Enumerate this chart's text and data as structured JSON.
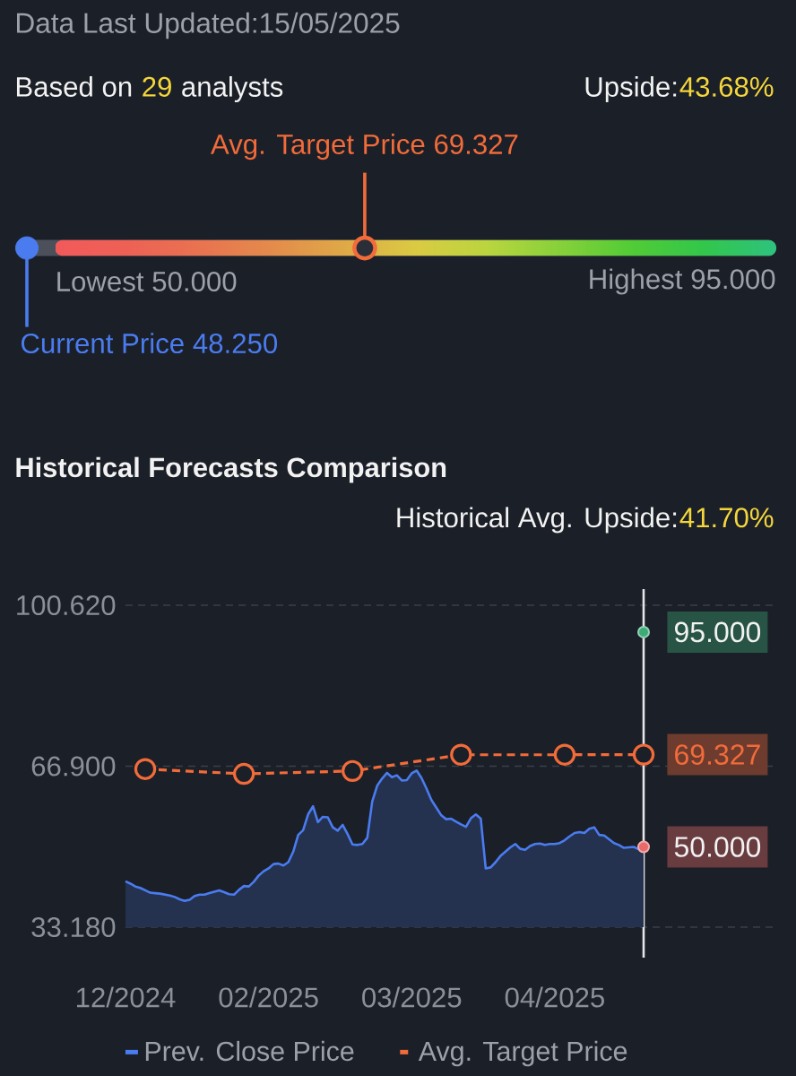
{
  "chart_data": [
    {
      "type": "other",
      "annotations": [
        "Data Last Updated:15/05/2025",
        "Based on",
        "29",
        "analysts",
        "Upside:",
        "43.68%"
      ],
      "categories": [
        "Lowest",
        "Highest",
        "Avg. Target Price",
        "Current Price"
      ],
      "values": [
        50,
        95,
        69.327,
        48.25
      ],
      "value_labels": [
        "50.000",
        "95.000",
        "69.327",
        "48.250"
      ],
      "colors": [
        "#f25a5a",
        "#2ec27e",
        "#f26b3a",
        "#4a7cf0"
      ]
    },
    {
      "type": "line",
      "title": "Historical Forecasts Comparison",
      "annotations": [
        "Historical Avg. Upside:",
        "41.70%"
      ],
      "categories": [
        "12/2024",
        null,
        null,
        null,
        null,
        null,
        null,
        null,
        null,
        null,
        null,
        null,
        null,
        null,
        null,
        null,
        null,
        null,
        null,
        null,
        null,
        null,
        null,
        null,
        null,
        null,
        null,
        null,
        null,
        "02/2025",
        null,
        null,
        null,
        null,
        null,
        null,
        null,
        null,
        null,
        null,
        null,
        null,
        null,
        null,
        null,
        null,
        null,
        null,
        null,
        null,
        null,
        null,
        null,
        null,
        null,
        null,
        null,
        null,
        "03/2025",
        null,
        null,
        null,
        null,
        null,
        null,
        null,
        null,
        null,
        null,
        null,
        null,
        null,
        null,
        null,
        null,
        null,
        null,
        null,
        null,
        null,
        null,
        null,
        null,
        null,
        null,
        null,
        null,
        "04/2025",
        null,
        null,
        null,
        null,
        null,
        null,
        null,
        null,
        null,
        null,
        null,
        null,
        null,
        null,
        null,
        null,
        null,
        null
      ],
      "ylim": [
        33.18,
        100.62
      ],
      "yticks": [
        {
          "value": 33.18,
          "label": "33.180"
        },
        {
          "value": 66.9,
          "label": "66.900"
        },
        {
          "value": 100.62,
          "label": "100.620"
        }
      ],
      "grid": "y",
      "legend": "bottom",
      "series": [
        {
          "name": "Prev. Close Price",
          "type": "area",
          "color": "#4a7cf0",
          "values": [
            42.8,
            42.3,
            41.7,
            41.4,
            40.9,
            40.4,
            40.3,
            40.2,
            40.0,
            39.8,
            39.5,
            39.0,
            38.7,
            38.9,
            39.7,
            40.0,
            40.0,
            40.3,
            40.6,
            40.9,
            40.5,
            40.1,
            40.0,
            41.0,
            41.8,
            41.7,
            42.7,
            44.0,
            44.9,
            45.5,
            46.4,
            46.5,
            46.1,
            46.8,
            49.0,
            52.5,
            53.5,
            56.8,
            58.5,
            55.2,
            56.3,
            56.2,
            54.1,
            53.4,
            54.6,
            52.7,
            50.5,
            50.4,
            50.6,
            51.9,
            59.5,
            62.8,
            64.3,
            65.5,
            64.6,
            65.0,
            63.9,
            64.0,
            65.4,
            66.0,
            64.4,
            62.2,
            59.8,
            58.2,
            56.6,
            55.8,
            55.9,
            55.3,
            54.7,
            54.2,
            56.0,
            56.8,
            55.9,
            45.5,
            45.7,
            46.8,
            48.1,
            49.0,
            49.9,
            50.6,
            49.6,
            49.4,
            50.2,
            50.6,
            50.7,
            50.4,
            50.6,
            50.6,
            50.8,
            51.4,
            52.2,
            52.9,
            53.1,
            52.9,
            53.8,
            54.1,
            52.5,
            52.4,
            51.6,
            50.8,
            50.4,
            49.8,
            49.9,
            50.0,
            49.5,
            49.4
          ]
        },
        {
          "name": "Avg. Target Price",
          "type": "line",
          "color": "#f26b3a",
          "line_style": "dashed",
          "marker": "circle",
          "values": [
            null,
            null,
            null,
            null,
            66.3,
            null,
            null,
            null,
            null,
            null,
            null,
            null,
            null,
            null,
            null,
            null,
            null,
            null,
            null,
            null,
            null,
            null,
            null,
            null,
            65.3,
            null,
            null,
            null,
            null,
            null,
            null,
            null,
            null,
            null,
            null,
            null,
            null,
            null,
            null,
            null,
            null,
            null,
            null,
            null,
            null,
            null,
            65.9,
            null,
            null,
            null,
            null,
            null,
            null,
            null,
            null,
            null,
            null,
            null,
            null,
            null,
            null,
            null,
            null,
            null,
            null,
            null,
            null,
            null,
            69.3,
            null,
            null,
            null,
            null,
            null,
            null,
            null,
            null,
            null,
            null,
            null,
            null,
            null,
            null,
            null,
            null,
            null,
            null,
            null,
            null,
            69.3,
            null,
            null,
            null,
            null,
            null,
            null,
            null,
            null,
            null,
            null,
            null,
            null,
            null,
            null,
            null,
            69.327
          ],
          "value_labels": [
            null,
            null,
            null,
            null,
            null,
            null,
            null,
            null,
            null,
            null,
            null,
            null,
            null,
            null,
            null,
            null,
            null,
            null,
            null,
            null,
            null,
            null,
            null,
            null,
            null,
            null,
            null,
            null,
            null,
            null,
            null,
            null,
            null,
            null,
            null,
            null,
            null,
            null,
            null,
            null,
            null,
            null,
            null,
            null,
            null,
            null,
            null,
            null,
            null,
            null,
            null,
            null,
            null,
            null,
            null,
            null,
            null,
            null,
            null,
            null,
            null,
            null,
            null,
            null,
            null,
            null,
            null,
            null,
            null,
            null,
            null,
            null,
            null,
            null,
            null,
            null,
            null,
            null,
            null,
            null,
            null,
            null,
            null,
            null,
            null,
            null,
            null,
            null,
            null,
            null,
            null,
            null,
            null,
            null,
            null,
            null,
            null,
            null,
            null,
            null,
            null,
            null,
            null,
            null,
            null,
            "69.327"
          ]
        },
        {
          "type": "scatter",
          "color": "#3dab78",
          "values": [
            null,
            null,
            null,
            null,
            null,
            null,
            null,
            null,
            null,
            null,
            null,
            null,
            null,
            null,
            null,
            null,
            null,
            null,
            null,
            null,
            null,
            null,
            null,
            null,
            null,
            null,
            null,
            null,
            null,
            null,
            null,
            null,
            null,
            null,
            null,
            null,
            null,
            null,
            null,
            null,
            null,
            null,
            null,
            null,
            null,
            null,
            null,
            null,
            null,
            null,
            null,
            null,
            null,
            null,
            null,
            null,
            null,
            null,
            null,
            null,
            null,
            null,
            null,
            null,
            null,
            null,
            null,
            null,
            null,
            null,
            null,
            null,
            null,
            null,
            null,
            null,
            null,
            null,
            null,
            null,
            null,
            null,
            null,
            null,
            null,
            null,
            null,
            null,
            null,
            null,
            null,
            null,
            null,
            null,
            null,
            null,
            null,
            null,
            null,
            null,
            null,
            null,
            null,
            null,
            null,
            95
          ],
          "value_labels": [
            null,
            null,
            null,
            null,
            null,
            null,
            null,
            null,
            null,
            null,
            null,
            null,
            null,
            null,
            null,
            null,
            null,
            null,
            null,
            null,
            null,
            null,
            null,
            null,
            null,
            null,
            null,
            null,
            null,
            null,
            null,
            null,
            null,
            null,
            null,
            null,
            null,
            null,
            null,
            null,
            null,
            null,
            null,
            null,
            null,
            null,
            null,
            null,
            null,
            null,
            null,
            null,
            null,
            null,
            null,
            null,
            null,
            null,
            null,
            null,
            null,
            null,
            null,
            null,
            null,
            null,
            null,
            null,
            null,
            null,
            null,
            null,
            null,
            null,
            null,
            null,
            null,
            null,
            null,
            null,
            null,
            null,
            null,
            null,
            null,
            null,
            null,
            null,
            null,
            null,
            null,
            null,
            null,
            null,
            null,
            null,
            null,
            null,
            null,
            null,
            null,
            null,
            null,
            null,
            null,
            "95.000"
          ]
        },
        {
          "type": "scatter",
          "color": "#e86a6a",
          "values": [
            null,
            null,
            null,
            null,
            null,
            null,
            null,
            null,
            null,
            null,
            null,
            null,
            null,
            null,
            null,
            null,
            null,
            null,
            null,
            null,
            null,
            null,
            null,
            null,
            null,
            null,
            null,
            null,
            null,
            null,
            null,
            null,
            null,
            null,
            null,
            null,
            null,
            null,
            null,
            null,
            null,
            null,
            null,
            null,
            null,
            null,
            null,
            null,
            null,
            null,
            null,
            null,
            null,
            null,
            null,
            null,
            null,
            null,
            null,
            null,
            null,
            null,
            null,
            null,
            null,
            null,
            null,
            null,
            null,
            null,
            null,
            null,
            null,
            null,
            null,
            null,
            null,
            null,
            null,
            null,
            null,
            null,
            null,
            null,
            null,
            null,
            null,
            null,
            null,
            null,
            null,
            null,
            null,
            null,
            null,
            null,
            null,
            null,
            null,
            null,
            null,
            null,
            null,
            null,
            null,
            50
          ],
          "value_labels": [
            null,
            null,
            null,
            null,
            null,
            null,
            null,
            null,
            null,
            null,
            null,
            null,
            null,
            null,
            null,
            null,
            null,
            null,
            null,
            null,
            null,
            null,
            null,
            null,
            null,
            null,
            null,
            null,
            null,
            null,
            null,
            null,
            null,
            null,
            null,
            null,
            null,
            null,
            null,
            null,
            null,
            null,
            null,
            null,
            null,
            null,
            null,
            null,
            null,
            null,
            null,
            null,
            null,
            null,
            null,
            null,
            null,
            null,
            null,
            null,
            null,
            null,
            null,
            null,
            null,
            null,
            null,
            null,
            null,
            null,
            null,
            null,
            null,
            null,
            null,
            null,
            null,
            null,
            null,
            null,
            null,
            null,
            null,
            null,
            null,
            null,
            null,
            null,
            null,
            null,
            null,
            null,
            null,
            null,
            null,
            null,
            null,
            null,
            null,
            null,
            null,
            null,
            null,
            null,
            null,
            "50.000"
          ]
        }
      ]
    }
  ]
}
